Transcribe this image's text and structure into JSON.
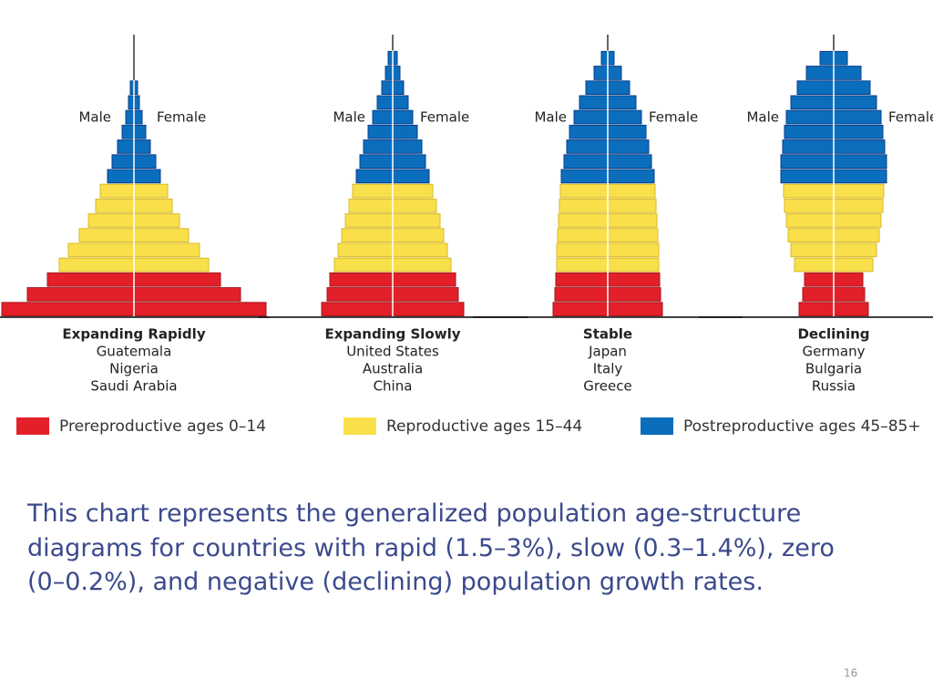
{
  "chart_data": [
    {
      "type": "pyramid",
      "title": "Expanding Rapidly",
      "countries": [
        "Guatemala",
        "Nigeria",
        "Saudi Arabia"
      ],
      "left_label": "Male",
      "right_label": "Female",
      "groups": [
        [
          145,
          117,
          95
        ],
        [
          82,
          72,
          60,
          50,
          42,
          37
        ],
        [
          29,
          24,
          18,
          13,
          9,
          6,
          4
        ]
      ]
    },
    {
      "type": "pyramid",
      "title": "Expanding Slowly",
      "countries": [
        "United States",
        "Australia",
        "China"
      ],
      "left_label": "Male",
      "right_label": "Female",
      "groups": [
        [
          78,
          72,
          69
        ],
        [
          64,
          60,
          56,
          52,
          48,
          44
        ],
        [
          40,
          36,
          32,
          27,
          22,
          17,
          12,
          8,
          5
        ]
      ]
    },
    {
      "type": "pyramid",
      "title": "Stable",
      "countries": [
        "Japan",
        "Italy",
        "Greece"
      ],
      "left_label": "Male",
      "right_label": "Female",
      "groups": [
        [
          60,
          58,
          57
        ],
        [
          56,
          56,
          55,
          54,
          53,
          52
        ],
        [
          51,
          48,
          45,
          42,
          37,
          31,
          24,
          15,
          7
        ]
      ]
    },
    {
      "type": "pyramid",
      "title": "Declining",
      "countries": [
        "Germany",
        "Bulgaria",
        "Russia"
      ],
      "left_label": "Male",
      "right_label": "Female",
      "groups": [
        [
          38,
          34,
          32
        ],
        [
          43,
          47,
          50,
          52,
          54,
          55
        ],
        [
          58,
          58,
          56,
          54,
          52,
          47,
          40,
          30,
          15
        ]
      ]
    }
  ],
  "legend": [
    {
      "name": "Prereproductive ages 0–14",
      "color": "#e3202a"
    },
    {
      "name": "Reproductive ages 15–44",
      "color": "#f9e04b"
    },
    {
      "name": "Postreproductive ages 45–85+",
      "color": "#0a6ebd"
    }
  ],
  "caption_lines": [
    "This chart represents the generalized population age-structure",
    "diagrams for countries with rapid (1.5–3%), slow (0.3–1.4%), zero",
    "(0–0.2%), and negative (declining) population growth rates."
  ],
  "page_number": "16"
}
